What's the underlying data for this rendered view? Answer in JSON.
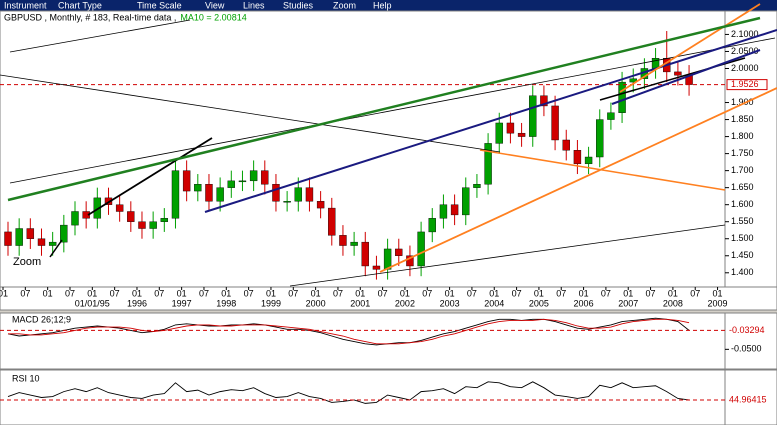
{
  "menu": [
    "Instrument",
    "Chart Type",
    "Time Scale",
    "View",
    "Lines",
    "Studies",
    "Zoom",
    "Help"
  ],
  "header": {
    "info": "GBPUSD , Monthly, # 183, Real-time data ,",
    "ma_label": "MA10 = 2.00814"
  },
  "zoom_label": "Zoom",
  "chart_data": [
    {
      "type": "candlestick",
      "x": [
        "1993-01",
        "1993-04",
        "1993-07",
        "1993-10",
        "1994-01",
        "1994-04",
        "1994-07",
        "1994-10",
        "1995-01",
        "1995-04",
        "1995-07",
        "1995-10",
        "1996-01",
        "1996-04",
        "1996-07",
        "1996-10",
        "1997-01",
        "1997-04",
        "1997-07",
        "1997-10",
        "1998-01",
        "1998-04",
        "1998-07",
        "1998-10",
        "1999-01",
        "1999-04",
        "1999-07",
        "1999-10",
        "2000-01",
        "2000-04",
        "2000-07",
        "2000-10",
        "2001-01",
        "2001-04",
        "2001-07",
        "2001-10",
        "2002-01",
        "2002-04",
        "2002-07",
        "2002-10",
        "2003-01",
        "2003-04",
        "2003-07",
        "2003-10",
        "2004-01",
        "2004-04",
        "2004-07",
        "2004-10",
        "2005-01",
        "2005-04",
        "2005-07",
        "2005-10",
        "2006-01",
        "2006-04",
        "2006-07",
        "2006-10",
        "2007-01",
        "2007-04",
        "2007-07",
        "2007-10",
        "2008-01",
        "2008-04"
      ],
      "open": [
        1.52,
        1.48,
        1.53,
        1.5,
        1.48,
        1.49,
        1.54,
        1.58,
        1.56,
        1.62,
        1.6,
        1.58,
        1.55,
        1.53,
        1.55,
        1.56,
        1.7,
        1.64,
        1.66,
        1.61,
        1.65,
        1.67,
        1.67,
        1.7,
        1.66,
        1.61,
        1.61,
        1.65,
        1.61,
        1.59,
        1.51,
        1.48,
        1.49,
        1.42,
        1.41,
        1.47,
        1.45,
        1.42,
        1.52,
        1.56,
        1.6,
        1.57,
        1.65,
        1.66,
        1.78,
        1.84,
        1.81,
        1.8,
        1.92,
        1.89,
        1.79,
        1.76,
        1.72,
        1.74,
        1.85,
        1.87,
        1.96,
        1.97,
        2.0,
        2.03,
        1.99,
        1.98
      ],
      "high": [
        1.55,
        1.56,
        1.56,
        1.53,
        1.52,
        1.57,
        1.61,
        1.61,
        1.65,
        1.65,
        1.63,
        1.61,
        1.58,
        1.58,
        1.59,
        1.73,
        1.73,
        1.69,
        1.69,
        1.68,
        1.7,
        1.7,
        1.73,
        1.73,
        1.69,
        1.64,
        1.68,
        1.68,
        1.64,
        1.62,
        1.54,
        1.52,
        1.52,
        1.45,
        1.5,
        1.5,
        1.48,
        1.55,
        1.59,
        1.63,
        1.63,
        1.68,
        1.69,
        1.81,
        1.87,
        1.87,
        1.84,
        1.95,
        1.95,
        1.92,
        1.82,
        1.79,
        1.77,
        1.88,
        1.9,
        1.99,
        2.0,
        2.03,
        2.06,
        2.11,
        2.02,
        2.01
      ],
      "low": [
        1.45,
        1.45,
        1.47,
        1.45,
        1.45,
        1.46,
        1.51,
        1.53,
        1.53,
        1.57,
        1.55,
        1.52,
        1.5,
        1.5,
        1.52,
        1.53,
        1.61,
        1.61,
        1.58,
        1.58,
        1.62,
        1.64,
        1.64,
        1.63,
        1.58,
        1.58,
        1.58,
        1.58,
        1.56,
        1.48,
        1.45,
        1.45,
        1.39,
        1.38,
        1.38,
        1.42,
        1.39,
        1.39,
        1.49,
        1.53,
        1.54,
        1.54,
        1.62,
        1.63,
        1.75,
        1.78,
        1.77,
        1.77,
        1.86,
        1.76,
        1.73,
        1.69,
        1.69,
        1.71,
        1.82,
        1.84,
        1.93,
        1.94,
        1.97,
        1.96,
        1.95,
        1.92
      ],
      "close": [
        1.48,
        1.53,
        1.5,
        1.48,
        1.49,
        1.54,
        1.58,
        1.56,
        1.62,
        1.6,
        1.58,
        1.55,
        1.53,
        1.55,
        1.56,
        1.7,
        1.64,
        1.66,
        1.61,
        1.65,
        1.67,
        1.67,
        1.7,
        1.66,
        1.61,
        1.61,
        1.65,
        1.61,
        1.59,
        1.51,
        1.48,
        1.49,
        1.42,
        1.41,
        1.47,
        1.45,
        1.42,
        1.52,
        1.56,
        1.6,
        1.57,
        1.65,
        1.66,
        1.78,
        1.84,
        1.81,
        1.8,
        1.92,
        1.89,
        1.79,
        1.76,
        1.72,
        1.74,
        1.85,
        1.87,
        1.96,
        1.97,
        2.0,
        2.03,
        1.99,
        1.98,
        1.9526
      ],
      "up_color": "#00a000",
      "down_color": "#d00000",
      "xlim": [
        "1993-01",
        "2009-03"
      ],
      "month_ticks": [
        {
          "value": "1993-01",
          "label": "01"
        },
        {
          "value": "1993-07",
          "label": "07"
        },
        {
          "value": "1994-01",
          "label": "01"
        },
        {
          "value": "1994-07",
          "label": "07"
        },
        {
          "value": "1995-01",
          "label": "01"
        },
        {
          "value": "1995-07",
          "label": "07"
        },
        {
          "value": "1996-01",
          "label": "01"
        },
        {
          "value": "1996-07",
          "label": "07"
        },
        {
          "value": "1997-01",
          "label": "01"
        },
        {
          "value": "1997-07",
          "label": "07"
        },
        {
          "value": "1998-01",
          "label": "01"
        },
        {
          "value": "1998-07",
          "label": "07"
        },
        {
          "value": "1999-01",
          "label": "01"
        },
        {
          "value": "1999-07",
          "label": "07"
        },
        {
          "value": "2000-01",
          "label": "01"
        },
        {
          "value": "2000-07",
          "label": "07"
        },
        {
          "value": "2001-01",
          "label": "01"
        },
        {
          "value": "2001-07",
          "label": "07"
        },
        {
          "value": "2002-01",
          "label": "01"
        },
        {
          "value": "2002-07",
          "label": "07"
        },
        {
          "value": "2003-01",
          "label": "01"
        },
        {
          "value": "2003-07",
          "label": "07"
        },
        {
          "value": "2004-01",
          "label": "01"
        },
        {
          "value": "2004-07",
          "label": "07"
        },
        {
          "value": "2005-01",
          "label": "01"
        },
        {
          "value": "2005-07",
          "label": "07"
        },
        {
          "value": "2006-01",
          "label": "01"
        },
        {
          "value": "2006-07",
          "label": "07"
        },
        {
          "value": "2007-01",
          "label": "01"
        },
        {
          "value": "2007-07",
          "label": "07"
        },
        {
          "value": "2008-01",
          "label": "01"
        },
        {
          "value": "2008-07",
          "label": "07"
        },
        {
          "value": "2009-01",
          "label": "01"
        }
      ],
      "year_ticks": [
        {
          "value": "1995-01",
          "label": "01/01/95"
        },
        {
          "value": "1996-01",
          "label": "1996"
        },
        {
          "value": "1997-01",
          "label": "1997"
        },
        {
          "value": "1998-01",
          "label": "1998"
        },
        {
          "value": "1999-01",
          "label": "1999"
        },
        {
          "value": "2000-01",
          "label": "2000"
        },
        {
          "value": "2001-01",
          "label": "2001"
        },
        {
          "value": "2002-01",
          "label": "2002"
        },
        {
          "value": "2003-01",
          "label": "2003"
        },
        {
          "value": "2004-01",
          "label": "2004"
        },
        {
          "value": "2005-01",
          "label": "2005"
        },
        {
          "value": "2006-01",
          "label": "2006"
        },
        {
          "value": "2007-01",
          "label": "2007"
        },
        {
          "value": "2008-01",
          "label": "2008"
        },
        {
          "value": "2009-01",
          "label": "2009"
        }
      ],
      "ylim": [
        1.37,
        2.16
      ],
      "yticks": [
        {
          "value": 2.1,
          "label": "2.1000"
        },
        {
          "value": 2.05,
          "label": "2.0500"
        },
        {
          "value": 2.0,
          "label": "2.0000"
        },
        {
          "value": 1.9,
          "label": "1.900"
        },
        {
          "value": 1.85,
          "label": "1.850"
        },
        {
          "value": 1.8,
          "label": "1.800"
        },
        {
          "value": 1.75,
          "label": "1.750"
        },
        {
          "value": 1.7,
          "label": "1.700"
        },
        {
          "value": 1.65,
          "label": "1.650"
        },
        {
          "value": 1.6,
          "label": "1.600"
        },
        {
          "value": 1.55,
          "label": "1.550"
        },
        {
          "value": 1.5,
          "label": "1.500"
        },
        {
          "value": 1.45,
          "label": "1.450"
        },
        {
          "value": 1.4,
          "label": "1.400"
        }
      ]
    },
    {
      "type": "macd",
      "title": "MACD 26;12;9",
      "series": [
        {
          "name": "MACD",
          "color": "#000000",
          "values": [
            -0.036,
            -0.038,
            -0.037,
            -0.036,
            -0.035,
            -0.033,
            -0.031,
            -0.03,
            -0.029,
            -0.03,
            -0.031,
            -0.033,
            -0.035,
            -0.034,
            -0.032,
            -0.028,
            -0.027,
            -0.028,
            -0.029,
            -0.029,
            -0.028,
            -0.028,
            -0.027,
            -0.028,
            -0.03,
            -0.032,
            -0.032,
            -0.033,
            -0.035,
            -0.038,
            -0.041,
            -0.043,
            -0.045,
            -0.046,
            -0.045,
            -0.044,
            -0.044,
            -0.042,
            -0.039,
            -0.036,
            -0.034,
            -0.031,
            -0.028,
            -0.025,
            -0.023,
            -0.023,
            -0.024,
            -0.023,
            -0.023,
            -0.025,
            -0.028,
            -0.031,
            -0.032,
            -0.03,
            -0.028,
            -0.025,
            -0.024,
            -0.023,
            -0.022,
            -0.023,
            -0.025,
            -0.03294
          ]
        },
        {
          "name": "Signal",
          "color": "#d00000",
          "values": [
            -0.036,
            -0.036,
            -0.037,
            -0.037,
            -0.036,
            -0.035,
            -0.033,
            -0.031,
            -0.03,
            -0.03,
            -0.03,
            -0.031,
            -0.033,
            -0.034,
            -0.033,
            -0.031,
            -0.029,
            -0.028,
            -0.028,
            -0.029,
            -0.029,
            -0.028,
            -0.028,
            -0.028,
            -0.029,
            -0.03,
            -0.031,
            -0.032,
            -0.034,
            -0.036,
            -0.038,
            -0.041,
            -0.043,
            -0.045,
            -0.045,
            -0.045,
            -0.044,
            -0.043,
            -0.041,
            -0.038,
            -0.036,
            -0.033,
            -0.03,
            -0.027,
            -0.025,
            -0.024,
            -0.024,
            -0.024,
            -0.023,
            -0.024,
            -0.026,
            -0.029,
            -0.031,
            -0.031,
            -0.03,
            -0.027,
            -0.025,
            -0.024,
            -0.023,
            -0.023,
            -0.024,
            -0.026
          ]
        }
      ],
      "ylim": [
        -0.065,
        -0.02
      ],
      "yticks": [
        {
          "value": -0.05,
          "label": "-0.0500"
        }
      ]
    },
    {
      "type": "rsi",
      "title": "RSI 10",
      "series": [
        {
          "name": "RSI",
          "color": "#000000",
          "values": [
            52,
            60,
            55,
            50,
            52,
            62,
            68,
            62,
            70,
            60,
            55,
            50,
            48,
            55,
            58,
            80,
            62,
            65,
            55,
            62,
            66,
            64,
            70,
            58,
            50,
            52,
            60,
            52,
            48,
            40,
            42,
            45,
            38,
            40,
            55,
            50,
            45,
            62,
            64,
            68,
            58,
            72,
            70,
            82,
            80,
            72,
            70,
            82,
            70,
            55,
            52,
            48,
            52,
            75,
            70,
            80,
            70,
            72,
            74,
            62,
            48,
            44.96415
          ]
        }
      ],
      "ylim": [
        0,
        100
      ]
    }
  ]
}
